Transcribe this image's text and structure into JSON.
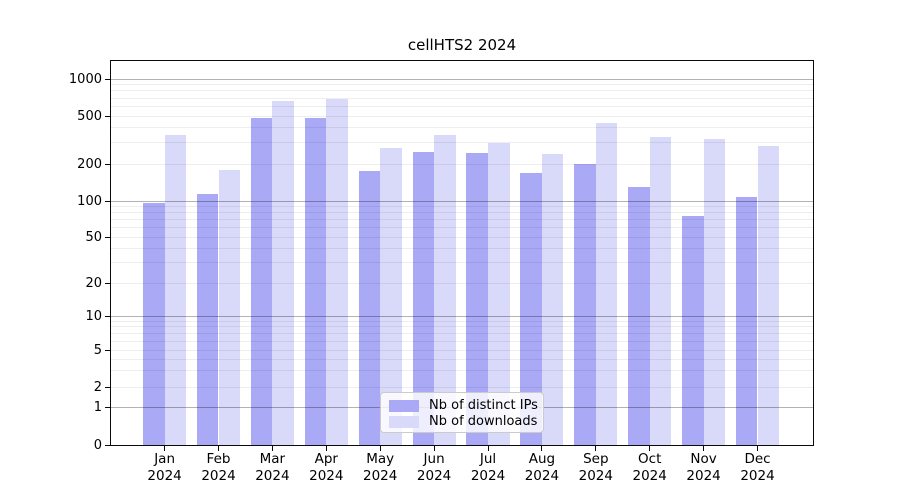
{
  "chart_data": {
    "type": "bar",
    "title": "cellHTS2 2024",
    "categories": [
      "Jan 2024",
      "Feb 2024",
      "Mar 2024",
      "Apr 2024",
      "May 2024",
      "Jun 2024",
      "Jul 2024",
      "Aug 2024",
      "Sep 2024",
      "Oct 2024",
      "Nov 2024",
      "Dec 2024"
    ],
    "x_tick_line1": [
      "Jan",
      "Feb",
      "Mar",
      "Apr",
      "May",
      "Jun",
      "Jul",
      "Aug",
      "Sep",
      "Oct",
      "Nov",
      "Dec"
    ],
    "x_tick_line2": "2024",
    "series": [
      {
        "name": "Nb of distinct IPs",
        "color": "#a9a9f6",
        "values": [
          97,
          115,
          480,
          480,
          175,
          250,
          245,
          170,
          200,
          130,
          75,
          108
        ]
      },
      {
        "name": "Nb of downloads",
        "color": "#d9d9f9",
        "values": [
          345,
          180,
          665,
          690,
          270,
          350,
          300,
          240,
          435,
          335,
          320,
          280
        ]
      }
    ],
    "y_ticks": [
      0,
      1,
      2,
      5,
      10,
      20,
      50,
      100,
      200,
      500,
      1000
    ],
    "y_scale": "log-like (0 baseline, decades 1-1000)",
    "ylim": [
      0,
      1000
    ],
    "grid": "both (minor light, decades darker)",
    "legend_position": "lower center",
    "background_color": "#ffffff",
    "spine_color": "#0a0a0a"
  }
}
